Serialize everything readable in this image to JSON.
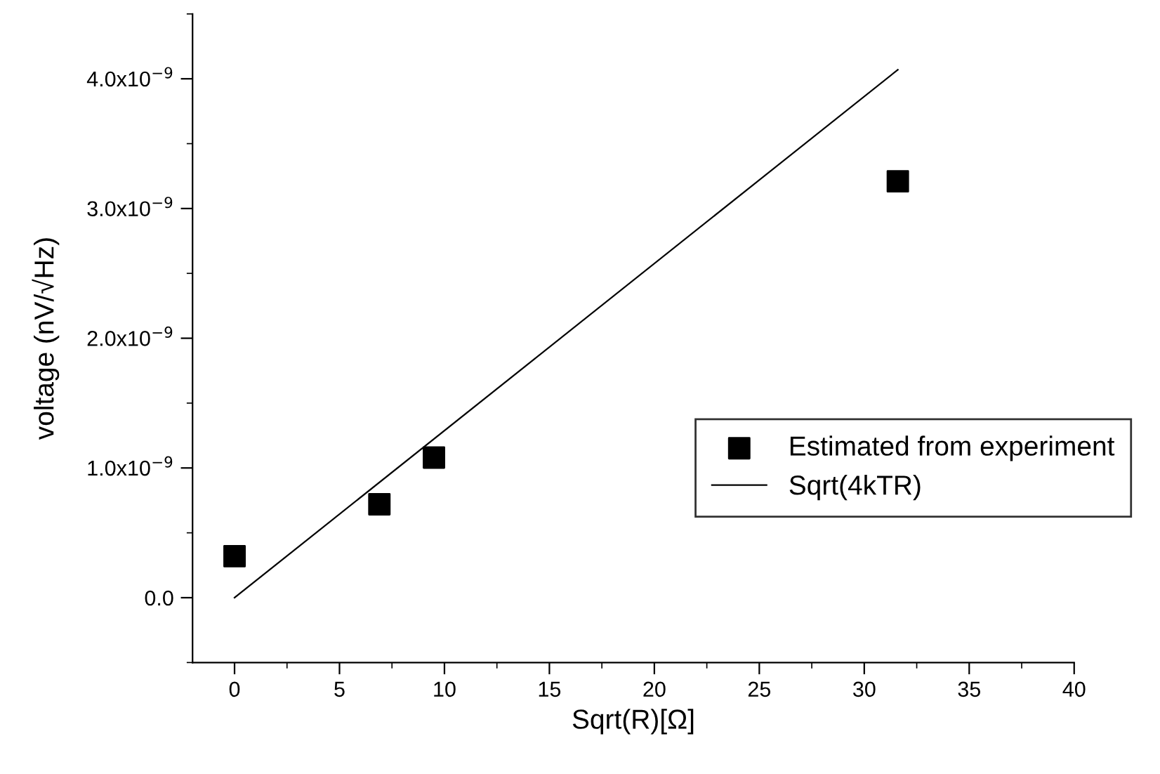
{
  "chart_data": {
    "type": "scatter",
    "xlabel": "Sqrt(R)[Ω]",
    "ylabel": "voltage (nV/√Hz)",
    "series": [
      {
        "name": "Estimated from experiment",
        "color": "#000000",
        "marker": "square",
        "x": [
          0,
          6.9,
          9.5,
          31.6
        ],
        "values": [
          3.2e-10,
          7.2e-10,
          1.08e-09,
          3.21e-09
        ]
      },
      {
        "name": "Sqrt(4kTR)",
        "type": "line",
        "color": "#000000",
        "marker": "none",
        "line_style": "solid",
        "x": [
          0,
          31.6
        ],
        "values": [
          0,
          4.07e-09
        ]
      }
    ],
    "xlim": [
      -2,
      40
    ],
    "xticks": [
      0,
      5,
      10,
      15,
      20,
      25,
      30,
      35,
      40
    ],
    "ylim": [
      -5e-10,
      4.5e-09
    ],
    "yticks": [
      {
        "value": 0,
        "label": "0.0"
      },
      {
        "value": 1e-09,
        "label": "1.0x10$^{−9}$"
      },
      {
        "value": 2e-09,
        "label": "2.0x10$^{−9}$"
      },
      {
        "value": 3e-09,
        "label": "3.0x10$^{−9}$"
      },
      {
        "value": 4e-09,
        "label": "4.0x10$^{−9}$"
      }
    ],
    "grid": false,
    "legend": "right"
  }
}
